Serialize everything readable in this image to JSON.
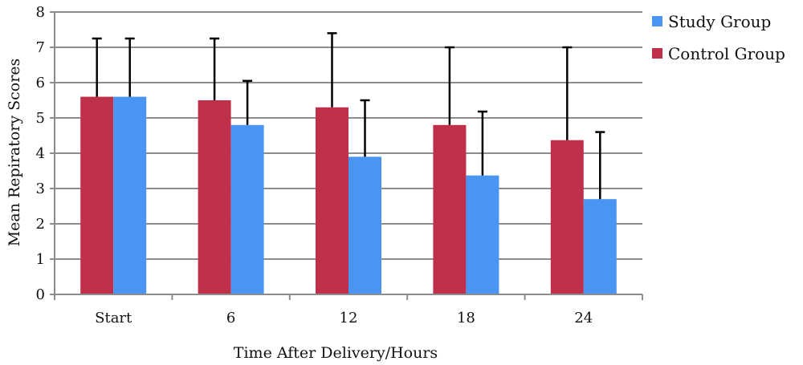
{
  "chart_data": {
    "type": "bar",
    "title": "",
    "xlabel": "Time After Delivery/Hours",
    "ylabel": "Mean Repiratory Scores",
    "ylim": [
      0,
      8
    ],
    "yticks": [
      0,
      1,
      2,
      3,
      4,
      5,
      6,
      7,
      8
    ],
    "grid": true,
    "legend_position": "right",
    "categories": [
      "Start",
      "6",
      "12",
      "18",
      "24"
    ],
    "series": [
      {
        "name": "Control Group",
        "color": "#c0304a",
        "values": [
          5.6,
          5.5,
          5.3,
          4.8,
          4.37
        ],
        "error_upper": [
          7.25,
          7.25,
          7.4,
          7.0,
          7.0
        ]
      },
      {
        "name": "Study Group",
        "color": "#4a95f2",
        "values": [
          5.6,
          4.8,
          3.9,
          3.37,
          2.7
        ],
        "error_upper": [
          7.25,
          6.05,
          5.5,
          5.18,
          4.6
        ]
      }
    ],
    "legend_order": [
      "Study Group",
      "Control Group"
    ]
  }
}
